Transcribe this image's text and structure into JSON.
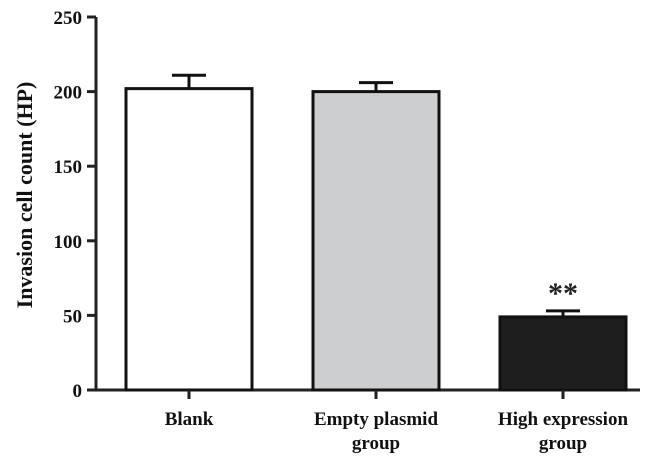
{
  "chart_data": {
    "type": "bar",
    "title": "",
    "xlabel": "",
    "ylabel": "Invasion cell count (HP)",
    "ylim": [
      0,
      250
    ],
    "yticks": [
      0,
      50,
      100,
      150,
      200,
      250
    ],
    "ytick_labels": [
      "0",
      "50",
      "100",
      "150",
      "200",
      "250"
    ],
    "categories": [
      [
        "Blank"
      ],
      [
        "Empty plasmid",
        "group"
      ],
      [
        "High expression",
        "group"
      ]
    ],
    "values": [
      202,
      200,
      49
    ],
    "errors": [
      9,
      6,
      4
    ],
    "bar_colors": [
      "#ffffff",
      "#cdcecf",
      "#1e1e1e"
    ],
    "annotations": [
      {
        "category_index": 2,
        "text": "**"
      }
    ],
    "grid": false,
    "legend": "none"
  }
}
